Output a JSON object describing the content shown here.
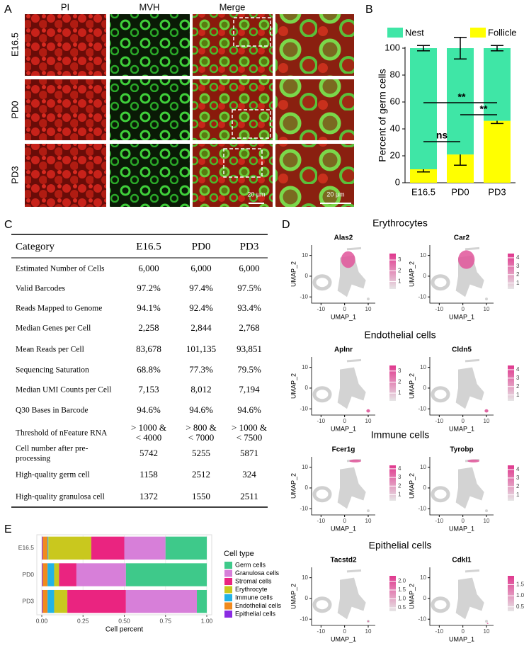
{
  "panel_labels": [
    "A",
    "B",
    "C",
    "D",
    "E"
  ],
  "panel_a": {
    "columns": [
      "PI",
      "MVH",
      "Merge"
    ],
    "rows": [
      "E16.5",
      "PD0",
      "PD3"
    ],
    "scale_bars": [
      "20 μm",
      "20 μm"
    ]
  },
  "chart_data": [
    {
      "type": "bar",
      "stacked": true,
      "orientation": "vertical",
      "y_label": "Percent of germ cells",
      "categories": [
        "E16.5",
        "PD0",
        "PD3"
      ],
      "series": [
        {
          "name": "Nest",
          "color": "#3fe6a6",
          "values": [
            90,
            79,
            54
          ],
          "errors": [
            2,
            8,
            2
          ]
        },
        {
          "name": "Follicle",
          "color": "#ffff00",
          "values": [
            10,
            21,
            46
          ],
          "errors": [
            2,
            8,
            2
          ]
        }
      ],
      "ylim": [
        0,
        100
      ],
      "yticks": [
        0,
        20,
        40,
        60,
        80,
        100
      ],
      "legend": "top",
      "annotations": [
        "**",
        "**",
        "ns"
      ]
    },
    {
      "type": "bar",
      "stacked": true,
      "orientation": "horizontal",
      "x_label": "Cell percent",
      "legend_title": "Cell type",
      "legend": "right",
      "categories": [
        "E16.5",
        "PD0",
        "PD3"
      ],
      "series": [
        {
          "name": "Germ cells",
          "color": "#3ec98a",
          "values": [
            0.25,
            0.49,
            0.06
          ]
        },
        {
          "name": "Granulosa cells",
          "color": "#d77fd9",
          "values": [
            0.25,
            0.3,
            0.43
          ]
        },
        {
          "name": "Stromal cells",
          "color": "#ea2480",
          "values": [
            0.2,
            0.105,
            0.355
          ]
        },
        {
          "name": "Erythrocyte",
          "color": "#c9c81e",
          "values": [
            0.26,
            0.03,
            0.08
          ]
        },
        {
          "name": "Immune cells",
          "color": "#22b3e6",
          "values": [
            0.005,
            0.04,
            0.04
          ]
        },
        {
          "name": "Endothelial cells",
          "color": "#f08a1e",
          "values": [
            0.03,
            0.03,
            0.03
          ]
        },
        {
          "name": "Epithelial cells",
          "color": "#8a2be2",
          "values": [
            0.005,
            0.005,
            0.005
          ]
        }
      ],
      "xlim": [
        -0.03,
        1.03
      ],
      "xticks": [
        {
          "value": 0,
          "label": "0.00"
        },
        {
          "value": 0.25,
          "label": "0.25"
        },
        {
          "value": 0.5,
          "label": "0.50"
        },
        {
          "value": 0.75,
          "label": "0.75"
        },
        {
          "value": 1,
          "label": "1.00"
        }
      ]
    }
  ],
  "table": {
    "header": [
      "Category",
      "E16.5",
      "PD0",
      "PD3"
    ],
    "rows": [
      [
        "Estimated Number of Cells",
        "6,000",
        "6,000",
        "6,000"
      ],
      [
        "Valid Barcodes",
        "97.2%",
        "97.4%",
        "97.5%"
      ],
      [
        "Reads Mapped to Genome",
        "94.1%",
        "92.4%",
        "93.4%"
      ],
      [
        "Median Genes per Cell",
        "2,258",
        "2,844",
        "2,768"
      ],
      [
        "Mean Reads per Cell",
        "83,678",
        "101,135",
        "93,851"
      ],
      [
        "Sequencing Saturation",
        "68.8%",
        "77.3%",
        "79.5%"
      ],
      [
        "Median UMI Counts per Cell",
        "7,153",
        "8,012",
        "7,194"
      ],
      [
        "Q30 Bases in Barcode",
        "94.6%",
        "94.6%",
        "94.6%"
      ],
      [
        "Threshold of nFeature RNA",
        [
          "> 1000 &",
          "< 4000"
        ],
        [
          "> 800 &",
          "< 7000"
        ],
        [
          "> 1000 &",
          "< 7500"
        ]
      ],
      [
        [
          "Cell number after pre-",
          "processing"
        ],
        "5742",
        "5255",
        "5871"
      ],
      [
        "High-quality germ cell",
        "1158",
        "2512",
        "324"
      ],
      [
        "High-quality granulosa cell",
        "1372",
        "1550",
        "2511"
      ]
    ]
  },
  "panel_d": {
    "x_label": "UMAP_1",
    "y_label": "UMAP_2",
    "xlim": [
      -14,
      13
    ],
    "ylim": [
      -13,
      15
    ],
    "xticks": [
      -10,
      0,
      10
    ],
    "yticks": [
      -10,
      0,
      10
    ],
    "groups": [
      {
        "title": "Erythrocytes",
        "genes": [
          {
            "name": "Alas2",
            "colorbar_lim": [
              0.3,
              3.6
            ],
            "colorbar_ticks": [
              1,
              2,
              3
            ]
          },
          {
            "name": "Car2",
            "colorbar_lim": [
              0.3,
              4.5
            ],
            "colorbar_ticks": [
              1,
              2,
              3,
              4
            ]
          }
        ]
      },
      {
        "title": "Endothelial cells",
        "genes": [
          {
            "name": "Aplnr",
            "colorbar_lim": [
              0.3,
              3.5
            ],
            "colorbar_ticks": [
              1,
              2,
              3
            ]
          },
          {
            "name": "Cldn5",
            "colorbar_lim": [
              0.3,
              4.5
            ],
            "colorbar_ticks": [
              1,
              2,
              3,
              4
            ]
          }
        ]
      },
      {
        "title": "Immune cells",
        "genes": [
          {
            "name": "Fcer1g",
            "colorbar_lim": [
              0.3,
              4.4
            ],
            "colorbar_ticks": [
              1,
              2,
              3,
              4
            ]
          },
          {
            "name": "Tyrobp",
            "colorbar_lim": [
              0.3,
              4.5
            ],
            "colorbar_ticks": [
              1,
              2,
              3,
              4
            ]
          }
        ]
      },
      {
        "title": "Epithelial cells",
        "genes": [
          {
            "name": "Tacstd2",
            "colorbar_lim": [
              0.3,
              2.3
            ],
            "colorbar_ticks": [
              0.5,
              {
                "value": 1,
                "label": "1.0"
              },
              1.5,
              {
                "value": 2,
                "label": "2.0"
              }
            ]
          },
          {
            "name": "Cdkl1",
            "colorbar_lim": [
              0.3,
              1.9
            ],
            "colorbar_ticks": [
              0.5,
              {
                "value": 1,
                "label": "1.0"
              },
              1.5
            ]
          }
        ]
      }
    ]
  }
}
